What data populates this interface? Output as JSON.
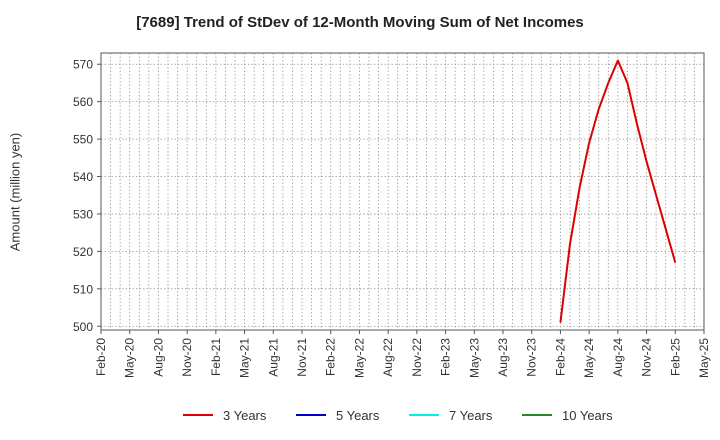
{
  "chart_data": {
    "type": "line",
    "title": "[7689]  Trend of StDev of 12-Month Moving Sum of Net Incomes",
    "xlabel": "",
    "ylabel": "Amount (million yen)",
    "ylim": [
      499,
      573
    ],
    "yticks": [
      500,
      510,
      520,
      530,
      540,
      550,
      560,
      570
    ],
    "x_start": "Feb-20",
    "x_end": "May-25",
    "xticks": [
      "Feb-20",
      "May-20",
      "Aug-20",
      "Nov-20",
      "Feb-21",
      "May-21",
      "Aug-21",
      "Nov-21",
      "Feb-22",
      "May-22",
      "Aug-22",
      "Nov-22",
      "Feb-23",
      "May-23",
      "Aug-23",
      "Nov-23",
      "Feb-24",
      "May-24",
      "Aug-24",
      "Nov-24",
      "Feb-25",
      "May-25"
    ],
    "grid": true,
    "legend_position": "bottom",
    "series": [
      {
        "name": "3 Years",
        "color": "#dd0000",
        "x": [
          "Feb-24",
          "Mar-24",
          "Apr-24",
          "May-24",
          "Jun-24",
          "Jul-24",
          "Aug-24",
          "Sep-24",
          "Oct-24",
          "Nov-24",
          "Dec-24",
          "Jan-25",
          "Feb-25"
        ],
        "values": [
          501,
          522,
          537,
          549,
          558,
          565,
          571,
          565,
          554,
          544,
          535,
          526,
          517
        ]
      },
      {
        "name": "5 Years",
        "color": "#0000cc",
        "x": [],
        "values": []
      },
      {
        "name": "7 Years",
        "color": "#00eeee",
        "x": [],
        "values": []
      },
      {
        "name": "10 Years",
        "color": "#228b22",
        "x": [],
        "values": []
      }
    ]
  }
}
